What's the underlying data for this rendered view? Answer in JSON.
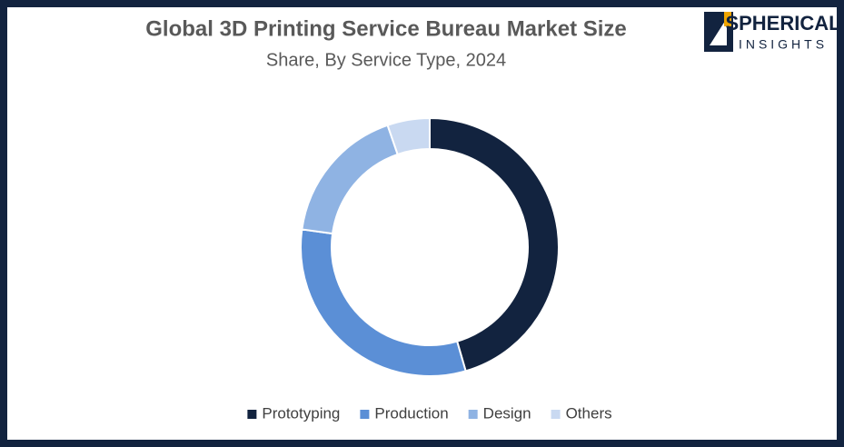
{
  "chart_data": {
    "type": "donut",
    "title": "Global 3D Printing Service Bureau Market Size",
    "subtitle": "Share, By Service Type, 2024",
    "categories": [
      "Prototyping",
      "Production",
      "Design",
      "Others"
    ],
    "values": [
      45.5,
      31.7,
      17.5,
      5.3
    ],
    "colors": [
      "#12233f",
      "#5b8fd6",
      "#8fb3e3",
      "#c9d9f1"
    ],
    "legend": "bottom"
  },
  "logo": {
    "line1": "SPHERICAL",
    "line2": "INSIGHTS"
  }
}
